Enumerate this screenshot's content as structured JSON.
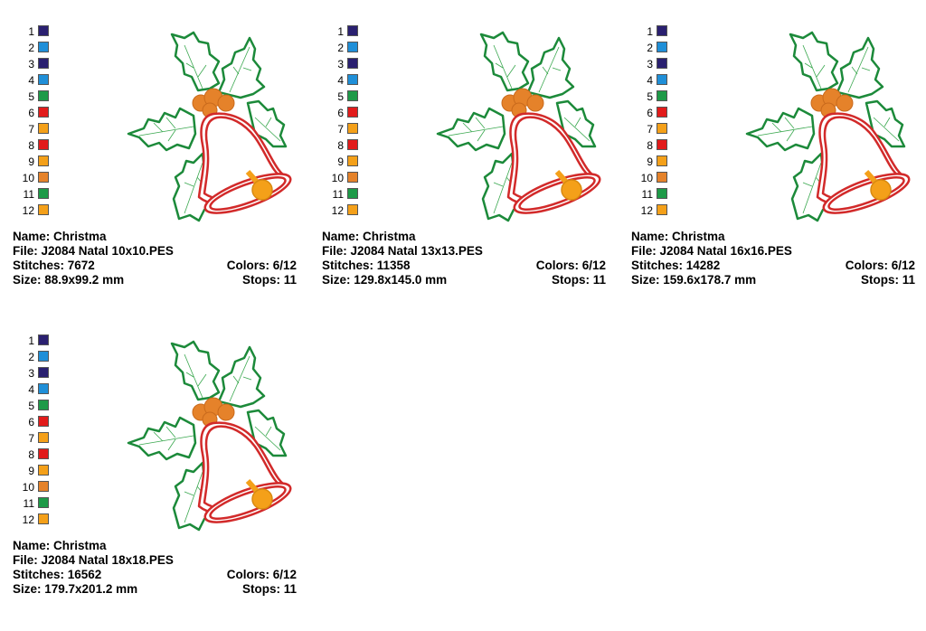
{
  "colors": [
    {
      "num": "1",
      "hex": "#2a2070"
    },
    {
      "num": "2",
      "hex": "#1f8fd8"
    },
    {
      "num": "3",
      "hex": "#2a2070"
    },
    {
      "num": "4",
      "hex": "#1f8fd8"
    },
    {
      "num": "5",
      "hex": "#1e9a48"
    },
    {
      "num": "6",
      "hex": "#e21b1b"
    },
    {
      "num": "7",
      "hex": "#f4a019"
    },
    {
      "num": "8",
      "hex": "#e21b1b"
    },
    {
      "num": "9",
      "hex": "#f4a019"
    },
    {
      "num": "10",
      "hex": "#e5822a"
    },
    {
      "num": "11",
      "hex": "#1e9a48"
    },
    {
      "num": "12",
      "hex": "#f4a019"
    }
  ],
  "designs": [
    {
      "name": "Name: Christma",
      "file": "File: J2084 Natal 10x10.PES",
      "stitches": "Stitches: 7672",
      "colors": "Colors: 6/12",
      "size": "Size: 88.9x99.2 mm",
      "stops": "Stops: 11"
    },
    {
      "name": "Name: Christma",
      "file": "File: J2084 Natal 13x13.PES",
      "stitches": "Stitches: 11358",
      "colors": "Colors: 6/12",
      "size": "Size: 129.8x145.0 mm",
      "stops": "Stops: 11"
    },
    {
      "name": "Name: Christma",
      "file": "File: J2084 Natal 16x16.PES",
      "stitches": "Stitches: 14282",
      "colors": "Colors: 6/12",
      "size": "Size: 159.6x178.7 mm",
      "stops": "Stops: 11"
    },
    {
      "name": "Name: Christma",
      "file": "File: J2084 Natal 18x18.PES",
      "stitches": "Stitches: 16562",
      "colors": "Colors: 6/12",
      "size": "Size: 179.7x201.2 mm",
      "stops": "Stops: 11"
    }
  ]
}
